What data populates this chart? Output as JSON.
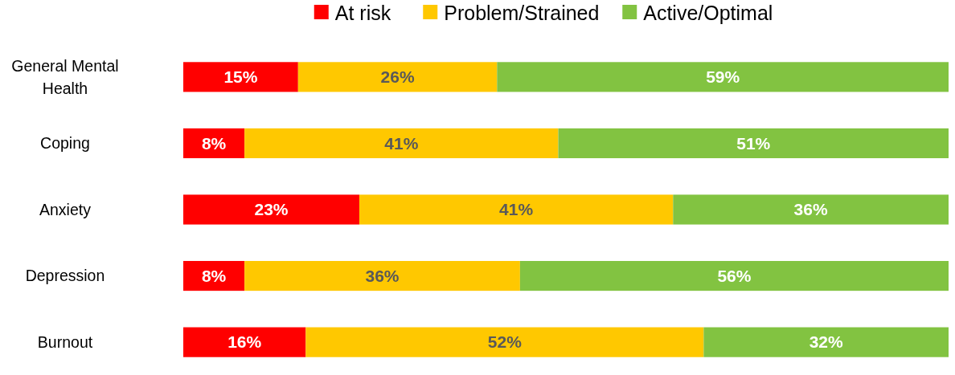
{
  "chart_data": {
    "type": "bar",
    "orientation": "horizontal",
    "stacked": true,
    "categories": [
      "General Mental Health",
      "Coping",
      "Anxiety",
      "Depression",
      "Burnout"
    ],
    "series": [
      {
        "name": "At risk",
        "color": "#ff0000",
        "values": [
          15,
          8,
          23,
          8,
          16
        ],
        "value_labels": [
          "15%",
          "8%",
          "23%",
          "8%",
          "16%"
        ]
      },
      {
        "name": "Problem/Strained",
        "color": "#ffc800",
        "values": [
          26,
          41,
          41,
          36,
          52
        ],
        "value_labels": [
          "26%",
          "41%",
          "41%",
          "36%",
          "52%"
        ]
      },
      {
        "name": "Active/Optimal",
        "color": "#82c341",
        "values": [
          59,
          51,
          36,
          56,
          32
        ],
        "value_labels": [
          "59%",
          "51%",
          "36%",
          "56%",
          "32%"
        ]
      }
    ],
    "tick_labels": "y",
    "legend": "top"
  }
}
